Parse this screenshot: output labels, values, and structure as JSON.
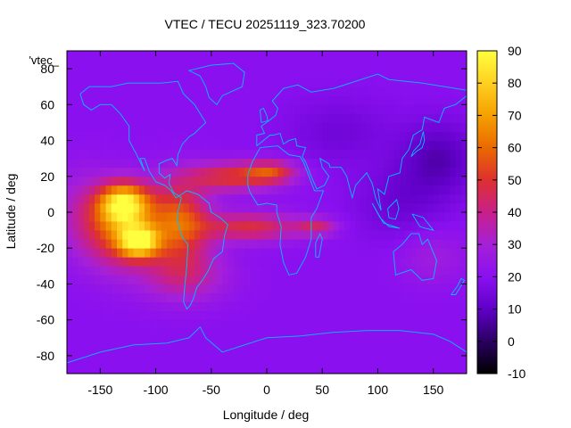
{
  "chart_data": {
    "type": "heatmap",
    "title": "VTEC / TECU 20251119_323.70200",
    "xlabel": "Longitude / deg",
    "ylabel": "Latitude / deg",
    "key_label": "'vtec_",
    "xlim": [
      -180,
      180
    ],
    "ylim": [
      -90,
      90
    ],
    "x_ticks": [
      -150,
      -100,
      -50,
      0,
      50,
      100,
      150
    ],
    "y_ticks": [
      -80,
      -60,
      -40,
      -20,
      0,
      20,
      40,
      60,
      80
    ],
    "colorbar": {
      "range": [
        -10,
        90
      ],
      "ticks": [
        -10,
        0,
        10,
        20,
        30,
        40,
        50,
        60,
        70,
        80,
        90
      ],
      "palette": [
        "#000000",
        "#2a0060",
        "#6000c8",
        "#8a10f0",
        "#a520d8",
        "#c8208a",
        "#dd3030",
        "#ea6a00",
        "#f5a000",
        "#ffd020",
        "#ffff40"
      ]
    },
    "grid_step_deg": 5,
    "background_vtec": 20,
    "features": [
      {
        "name": "west-pacific-crest",
        "lon": -130,
        "lat": 5,
        "peak_vtec": 78
      },
      {
        "name": "south-pacific-crest",
        "lon": -118,
        "lat": -17,
        "peak_vtec": 82
      },
      {
        "name": "south-america-crest",
        "lon": -75,
        "lat": -5,
        "peak_vtec": 60
      },
      {
        "name": "north-atlantic-band",
        "lon": -30,
        "lat": 20,
        "peak_vtec": 58
      },
      {
        "name": "south-atlantic-band",
        "lon": 0,
        "lat": -5,
        "peak_vtec": 48
      },
      {
        "name": "east-asia-trough",
        "lon": 150,
        "lat": 30,
        "peak_vtec": 6
      }
    ],
    "coastline_color": "#00c0ff",
    "overlay": "continent outlines"
  }
}
